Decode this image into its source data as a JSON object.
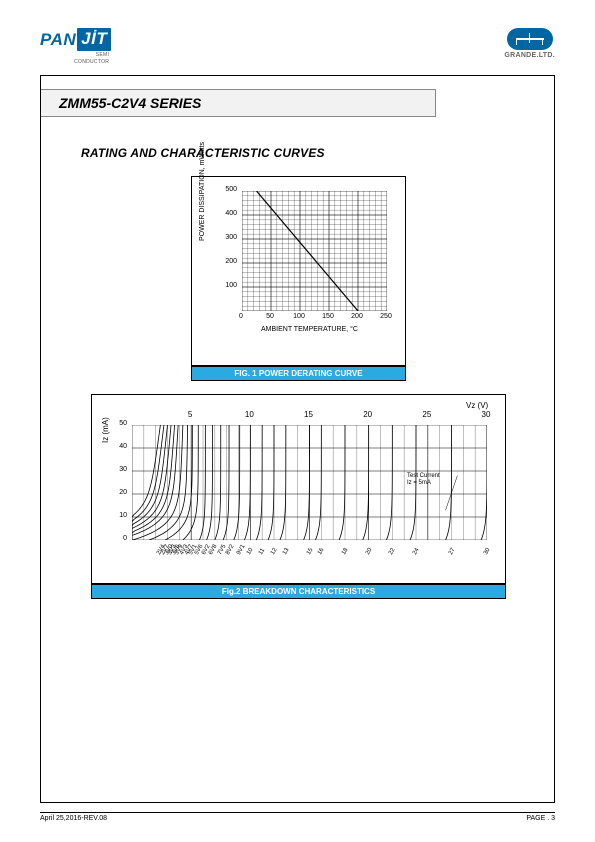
{
  "header": {
    "logo_pan": "PAN",
    "logo_jit": "JİT",
    "logo_sub1": "SEMI",
    "logo_sub2": "CONDUCTOR",
    "grande": "GRANDE.LTD."
  },
  "title": "ZMM55-C2V4 SERIES",
  "section": "RATING AND CHARACTERISTIC CURVES",
  "fig1": {
    "caption": "FIG. 1 POWER DERATING CURVE",
    "ylabel": "POWER DISSIPATION, mWatts",
    "xlabel": "AMBIENT TEMPERATURE, °C",
    "xlim": [
      0,
      250
    ],
    "ylim": [
      0,
      500
    ],
    "xticks": [
      0,
      50,
      100,
      150,
      200,
      250
    ],
    "yticks": [
      0,
      100,
      200,
      300,
      400,
      500
    ],
    "line": [
      [
        25,
        500
      ],
      [
        200,
        0
      ]
    ],
    "grid_color": "#000000",
    "line_color": "#000000",
    "line_width": 1.2,
    "background": "#ffffff"
  },
  "fig2": {
    "caption": "Fig.2 BREAKDOWN CHARACTERISTICS",
    "ylabel": "Iz (mA)",
    "toplabel": "Vz (V)",
    "xlim": [
      0,
      30
    ],
    "ylim": [
      0,
      50
    ],
    "xticks_top": [
      5,
      10,
      15,
      20,
      25,
      30
    ],
    "yticks": [
      0,
      10,
      20,
      30,
      40,
      50
    ],
    "bottom_labels": [
      "2V4",
      "2V7",
      "3V0",
      "3V3",
      "3V6",
      "3V9",
      "4V3",
      "4V7",
      "5V1",
      "5V6",
      "6V2",
      "6V8",
      "7V5",
      "8V2",
      "9V1",
      "10",
      "11",
      "12",
      "13",
      "15",
      "16",
      "18",
      "20",
      "22",
      "24",
      "27",
      "30"
    ],
    "note_line1": "Test Current",
    "note_line2": "Iz = 5mA",
    "curve_color": "#000000",
    "curve_width": 0.8,
    "grid_color": "#000000",
    "background": "#ffffff",
    "curves_vz": [
      2.4,
      2.7,
      3.0,
      3.3,
      3.6,
      3.9,
      4.3,
      4.7,
      5.1,
      5.6,
      6.2,
      6.8,
      7.5,
      8.2,
      9.1,
      10,
      11,
      12,
      13,
      15,
      16,
      18,
      20,
      22,
      24,
      27,
      30
    ]
  },
  "footer": {
    "left": "April 25,2016-REV.08",
    "right": "PAGE .  3"
  }
}
